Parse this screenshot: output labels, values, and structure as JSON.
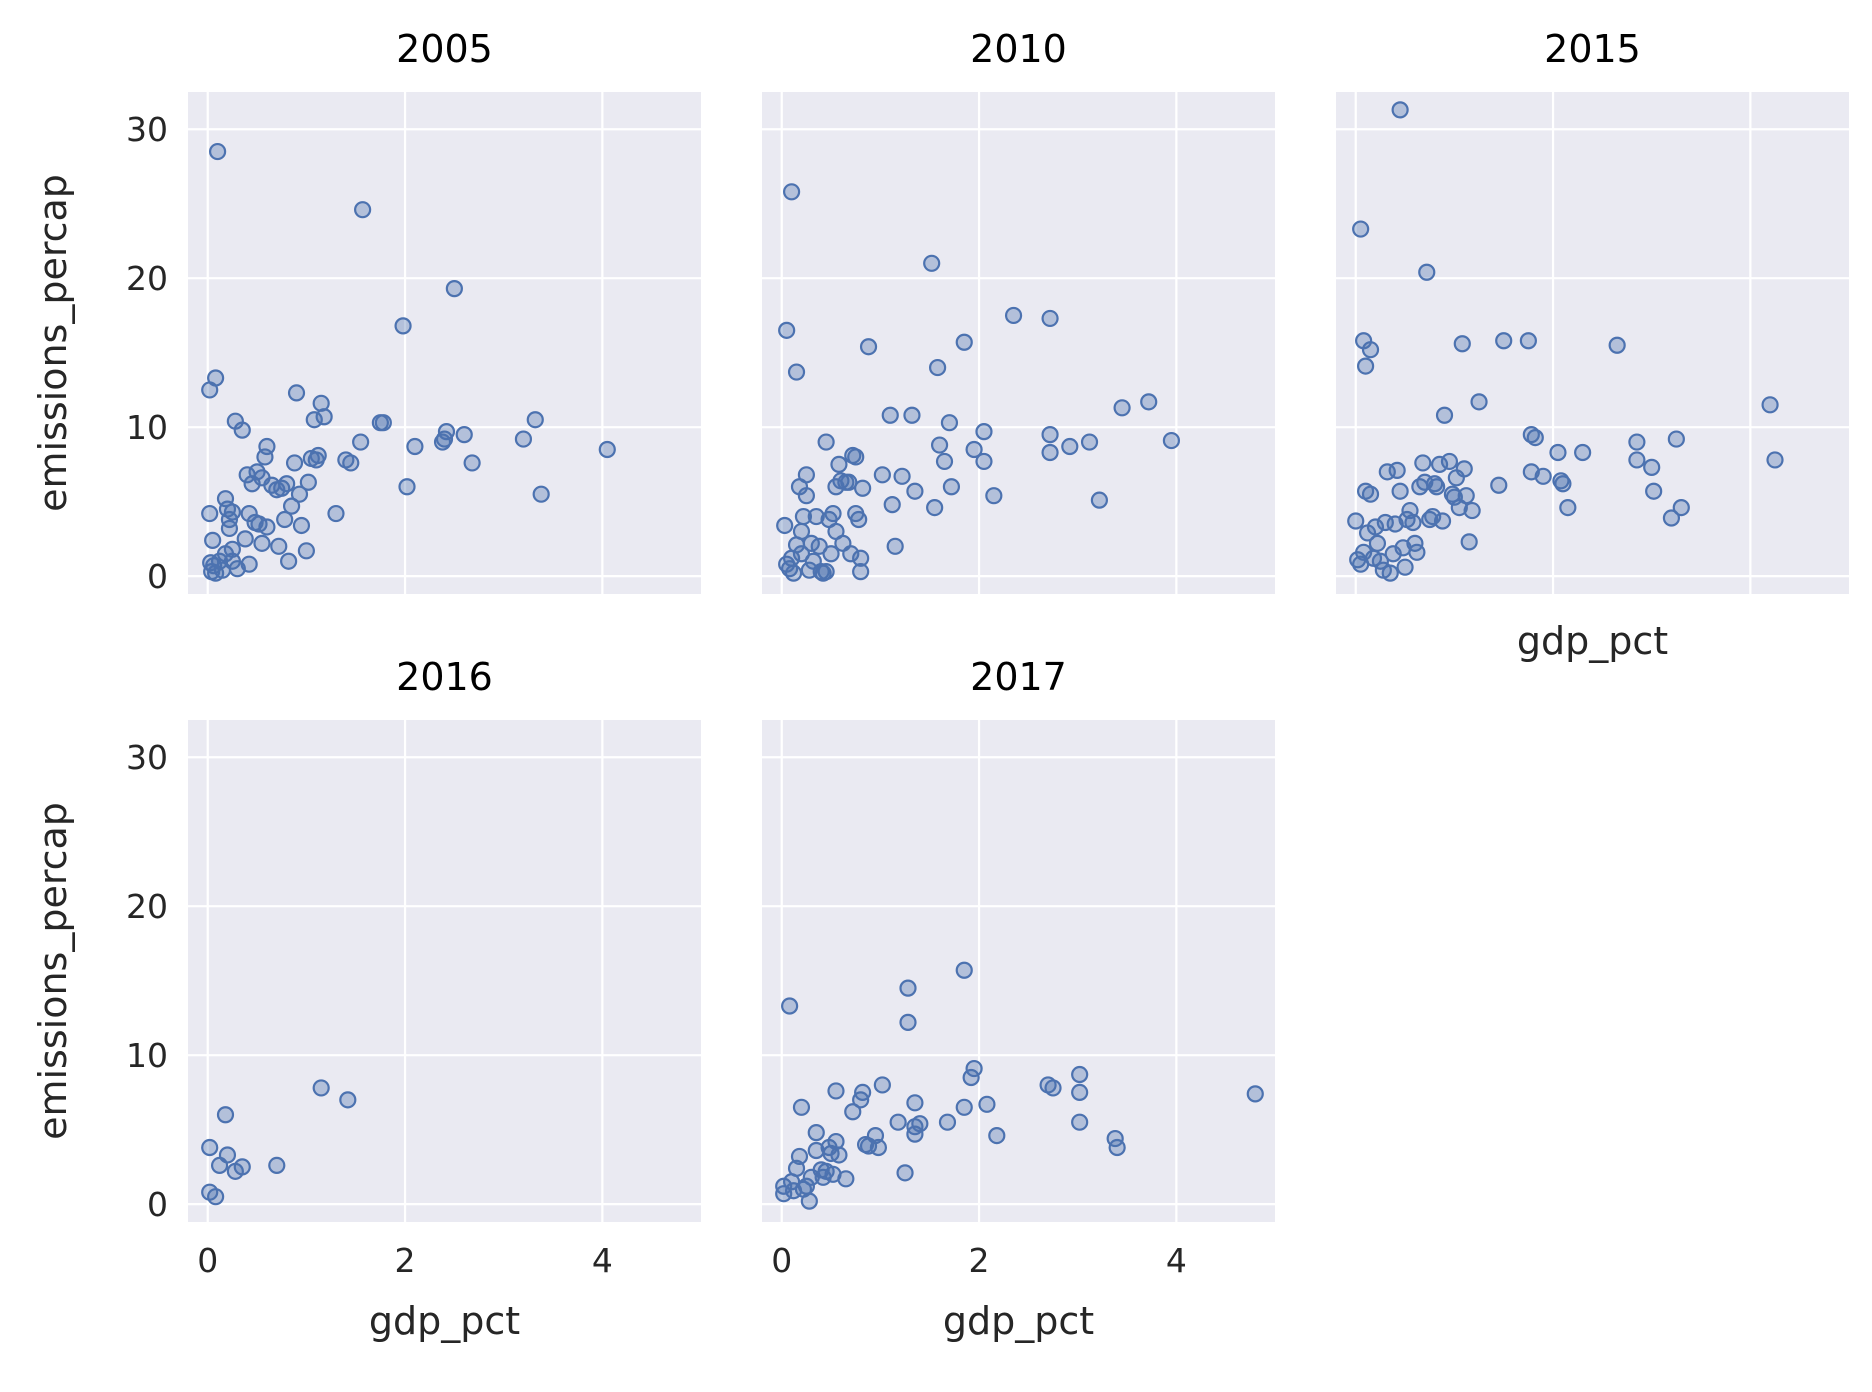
{
  "chart_data": {
    "type": "scatter",
    "layout": "facet-grid",
    "xlabel": "gdp_pct",
    "ylabel": "emissions_percap",
    "xlim": [
      -0.2,
      5.0
    ],
    "ylim": [
      -1.2,
      32.5
    ],
    "xticks": [
      0,
      2,
      4
    ],
    "yticks": [
      0,
      10,
      20,
      30
    ],
    "grid": true,
    "colors": {
      "background": "#eaeaf2",
      "grid": "#ffffff",
      "point": "#4c72b0"
    },
    "facets": [
      {
        "title": "2005",
        "points": [
          [
            0.02,
            12.5
          ],
          [
            0.08,
            13.3
          ],
          [
            0.1,
            28.5
          ],
          [
            0.02,
            4.2
          ],
          [
            0.05,
            2.4
          ],
          [
            0.03,
            0.9
          ],
          [
            0.06,
            0.7
          ],
          [
            0.04,
            0.3
          ],
          [
            0.08,
            0.2
          ],
          [
            0.12,
            1.0
          ],
          [
            0.15,
            0.4
          ],
          [
            0.18,
            1.5
          ],
          [
            0.18,
            5.2
          ],
          [
            0.2,
            4.5
          ],
          [
            0.22,
            3.8
          ],
          [
            0.22,
            3.2
          ],
          [
            0.25,
            4.3
          ],
          [
            0.25,
            1.8
          ],
          [
            0.28,
            10.4
          ],
          [
            0.3,
            0.5
          ],
          [
            0.35,
            9.8
          ],
          [
            0.38,
            2.5
          ],
          [
            0.4,
            6.8
          ],
          [
            0.42,
            4.2
          ],
          [
            0.45,
            6.2
          ],
          [
            0.48,
            3.6
          ],
          [
            0.5,
            7.0
          ],
          [
            0.52,
            3.5
          ],
          [
            0.55,
            6.6
          ],
          [
            0.55,
            2.2
          ],
          [
            0.58,
            8.0
          ],
          [
            0.6,
            8.7
          ],
          [
            0.6,
            3.3
          ],
          [
            0.65,
            6.1
          ],
          [
            0.7,
            5.8
          ],
          [
            0.72,
            2.0
          ],
          [
            0.75,
            5.9
          ],
          [
            0.78,
            3.8
          ],
          [
            0.8,
            6.2
          ],
          [
            0.82,
            1.0
          ],
          [
            0.85,
            4.7
          ],
          [
            0.88,
            7.6
          ],
          [
            0.9,
            12.3
          ],
          [
            0.93,
            5.5
          ],
          [
            0.95,
            3.4
          ],
          [
            1.0,
            1.7
          ],
          [
            1.02,
            6.3
          ],
          [
            1.05,
            7.9
          ],
          [
            1.08,
            10.5
          ],
          [
            1.1,
            7.8
          ],
          [
            1.12,
            8.1
          ],
          [
            1.15,
            11.6
          ],
          [
            1.18,
            10.7
          ],
          [
            1.3,
            4.2
          ],
          [
            1.4,
            7.8
          ],
          [
            1.45,
            7.6
          ],
          [
            1.55,
            9.0
          ],
          [
            1.57,
            24.6
          ],
          [
            1.75,
            10.3
          ],
          [
            1.78,
            10.3
          ],
          [
            1.98,
            16.8
          ],
          [
            2.02,
            6.0
          ],
          [
            2.1,
            8.7
          ],
          [
            2.38,
            9.0
          ],
          [
            2.4,
            9.2
          ],
          [
            2.42,
            9.7
          ],
          [
            2.5,
            19.3
          ],
          [
            2.6,
            9.5
          ],
          [
            2.68,
            7.6
          ],
          [
            3.2,
            9.2
          ],
          [
            3.32,
            10.5
          ],
          [
            3.38,
            5.5
          ],
          [
            4.05,
            8.5
          ],
          [
            0.42,
            0.8
          ],
          [
            0.25,
            1.0
          ]
        ],
        "xlabel": "",
        "xticks_visible": false
      },
      {
        "title": "2010",
        "points": [
          [
            0.05,
            16.5
          ],
          [
            0.1,
            25.8
          ],
          [
            0.15,
            13.7
          ],
          [
            0.03,
            3.4
          ],
          [
            0.05,
            0.8
          ],
          [
            0.08,
            0.5
          ],
          [
            0.1,
            1.2
          ],
          [
            0.12,
            0.2
          ],
          [
            0.15,
            2.1
          ],
          [
            0.18,
            6.0
          ],
          [
            0.2,
            1.5
          ],
          [
            0.2,
            3.0
          ],
          [
            0.22,
            4.0
          ],
          [
            0.25,
            5.4
          ],
          [
            0.25,
            6.8
          ],
          [
            0.28,
            0.4
          ],
          [
            0.3,
            2.2
          ],
          [
            0.32,
            1.0
          ],
          [
            0.35,
            4.0
          ],
          [
            0.38,
            2.0
          ],
          [
            0.4,
            0.3
          ],
          [
            0.42,
            0.2
          ],
          [
            0.45,
            9.0
          ],
          [
            0.48,
            3.8
          ],
          [
            0.5,
            1.5
          ],
          [
            0.52,
            4.2
          ],
          [
            0.55,
            6.0
          ],
          [
            0.55,
            3.0
          ],
          [
            0.58,
            7.5
          ],
          [
            0.6,
            6.4
          ],
          [
            0.62,
            2.2
          ],
          [
            0.65,
            6.3
          ],
          [
            0.68,
            6.3
          ],
          [
            0.7,
            1.5
          ],
          [
            0.72,
            8.1
          ],
          [
            0.75,
            8.0
          ],
          [
            0.75,
            4.2
          ],
          [
            0.78,
            3.8
          ],
          [
            0.8,
            1.2
          ],
          [
            0.82,
            5.9
          ],
          [
            0.88,
            15.4
          ],
          [
            1.02,
            6.8
          ],
          [
            1.1,
            10.8
          ],
          [
            1.12,
            4.8
          ],
          [
            1.15,
            2.0
          ],
          [
            1.22,
            6.7
          ],
          [
            1.32,
            10.8
          ],
          [
            1.35,
            5.7
          ],
          [
            1.52,
            21.0
          ],
          [
            1.55,
            4.6
          ],
          [
            1.58,
            14.0
          ],
          [
            1.6,
            8.8
          ],
          [
            1.65,
            7.7
          ],
          [
            1.7,
            10.3
          ],
          [
            1.72,
            6.0
          ],
          [
            1.85,
            15.7
          ],
          [
            1.95,
            8.5
          ],
          [
            2.05,
            9.7
          ],
          [
            2.05,
            7.7
          ],
          [
            2.15,
            5.4
          ],
          [
            2.35,
            17.5
          ],
          [
            2.72,
            17.3
          ],
          [
            2.72,
            9.5
          ],
          [
            2.72,
            8.3
          ],
          [
            2.92,
            8.7
          ],
          [
            3.12,
            9.0
          ],
          [
            3.22,
            5.1
          ],
          [
            3.45,
            11.3
          ],
          [
            3.72,
            11.7
          ],
          [
            3.95,
            9.1
          ],
          [
            0.8,
            0.3
          ],
          [
            0.45,
            0.3
          ]
        ],
        "xlabel": "",
        "xticks_visible": false
      },
      {
        "title": "2015",
        "points": [
          [
            0.05,
            23.3
          ],
          [
            0.08,
            15.8
          ],
          [
            0.1,
            14.1
          ],
          [
            0.15,
            15.2
          ],
          [
            0.45,
            31.3
          ],
          [
            0.0,
            3.7
          ],
          [
            0.02,
            1.1
          ],
          [
            0.05,
            0.8
          ],
          [
            0.08,
            1.6
          ],
          [
            0.1,
            5.7
          ],
          [
            0.12,
            2.9
          ],
          [
            0.15,
            5.5
          ],
          [
            0.18,
            1.2
          ],
          [
            0.2,
            3.3
          ],
          [
            0.22,
            2.2
          ],
          [
            0.25,
            1.0
          ],
          [
            0.28,
            0.4
          ],
          [
            0.3,
            3.6
          ],
          [
            0.32,
            7.0
          ],
          [
            0.35,
            0.2
          ],
          [
            0.38,
            1.5
          ],
          [
            0.4,
            3.5
          ],
          [
            0.42,
            7.1
          ],
          [
            0.45,
            5.7
          ],
          [
            0.48,
            1.9
          ],
          [
            0.5,
            0.6
          ],
          [
            0.52,
            3.8
          ],
          [
            0.55,
            4.4
          ],
          [
            0.58,
            3.6
          ],
          [
            0.6,
            2.2
          ],
          [
            0.62,
            1.6
          ],
          [
            0.65,
            6.0
          ],
          [
            0.68,
            7.6
          ],
          [
            0.7,
            6.3
          ],
          [
            0.72,
            20.4
          ],
          [
            0.75,
            3.8
          ],
          [
            0.78,
            4.0
          ],
          [
            0.8,
            6.2
          ],
          [
            0.82,
            6.0
          ],
          [
            0.85,
            7.5
          ],
          [
            0.88,
            3.7
          ],
          [
            0.9,
            10.8
          ],
          [
            0.95,
            7.7
          ],
          [
            0.98,
            5.5
          ],
          [
            1.0,
            5.3
          ],
          [
            1.02,
            6.6
          ],
          [
            1.05,
            4.6
          ],
          [
            1.08,
            15.6
          ],
          [
            1.1,
            7.2
          ],
          [
            1.12,
            5.4
          ],
          [
            1.15,
            2.3
          ],
          [
            1.18,
            4.4
          ],
          [
            1.25,
            11.7
          ],
          [
            1.45,
            6.1
          ],
          [
            1.5,
            15.8
          ],
          [
            1.75,
            15.8
          ],
          [
            1.78,
            9.5
          ],
          [
            1.78,
            7.0
          ],
          [
            1.82,
            9.3
          ],
          [
            1.9,
            6.7
          ],
          [
            2.05,
            8.3
          ],
          [
            2.08,
            6.4
          ],
          [
            2.1,
            6.2
          ],
          [
            2.15,
            4.6
          ],
          [
            2.3,
            8.3
          ],
          [
            2.65,
            15.5
          ],
          [
            2.85,
            9.0
          ],
          [
            2.85,
            7.8
          ],
          [
            3.0,
            7.3
          ],
          [
            3.02,
            5.7
          ],
          [
            3.2,
            3.9
          ],
          [
            3.25,
            9.2
          ],
          [
            3.3,
            4.6
          ],
          [
            4.2,
            11.5
          ],
          [
            4.25,
            7.8
          ]
        ],
        "xlabel": "gdp_pct",
        "xticks_visible": false
      },
      {
        "title": "2016",
        "points": [
          [
            0.02,
            3.8
          ],
          [
            0.02,
            0.8
          ],
          [
            0.08,
            0.5
          ],
          [
            0.12,
            2.6
          ],
          [
            0.18,
            6.0
          ],
          [
            0.2,
            3.3
          ],
          [
            0.28,
            2.2
          ],
          [
            0.35,
            2.5
          ],
          [
            0.7,
            2.6
          ],
          [
            1.15,
            7.8
          ],
          [
            1.42,
            7.0
          ]
        ],
        "xlabel": "gdp_pct",
        "xticks_visible": true
      },
      {
        "title": "2017",
        "points": [
          [
            0.02,
            1.2
          ],
          [
            0.02,
            0.7
          ],
          [
            0.08,
            13.3
          ],
          [
            0.1,
            1.5
          ],
          [
            0.12,
            0.9
          ],
          [
            0.15,
            2.4
          ],
          [
            0.18,
            3.2
          ],
          [
            0.2,
            6.5
          ],
          [
            0.22,
            1.0
          ],
          [
            0.25,
            1.2
          ],
          [
            0.28,
            0.2
          ],
          [
            0.3,
            1.8
          ],
          [
            0.35,
            4.8
          ],
          [
            0.35,
            3.6
          ],
          [
            0.4,
            2.3
          ],
          [
            0.42,
            1.8
          ],
          [
            0.45,
            2.2
          ],
          [
            0.48,
            3.8
          ],
          [
            0.5,
            3.4
          ],
          [
            0.52,
            2.0
          ],
          [
            0.55,
            4.2
          ],
          [
            0.55,
            7.6
          ],
          [
            0.58,
            3.3
          ],
          [
            0.65,
            1.7
          ],
          [
            0.72,
            6.2
          ],
          [
            0.8,
            7.0
          ],
          [
            0.82,
            7.5
          ],
          [
            0.85,
            4.0
          ],
          [
            0.88,
            3.9
          ],
          [
            0.95,
            4.6
          ],
          [
            0.98,
            3.8
          ],
          [
            1.02,
            8.0
          ],
          [
            1.18,
            5.5
          ],
          [
            1.25,
            2.1
          ],
          [
            1.28,
            12.2
          ],
          [
            1.28,
            14.5
          ],
          [
            1.35,
            6.8
          ],
          [
            1.35,
            5.2
          ],
          [
            1.35,
            4.7
          ],
          [
            1.4,
            5.4
          ],
          [
            1.68,
            5.5
          ],
          [
            1.85,
            15.7
          ],
          [
            1.85,
            6.5
          ],
          [
            1.92,
            8.5
          ],
          [
            1.95,
            9.1
          ],
          [
            2.08,
            6.7
          ],
          [
            2.18,
            4.6
          ],
          [
            2.7,
            8.0
          ],
          [
            2.75,
            7.8
          ],
          [
            3.02,
            8.7
          ],
          [
            3.02,
            7.5
          ],
          [
            3.02,
            5.5
          ],
          [
            3.38,
            4.4
          ],
          [
            3.4,
            3.8
          ],
          [
            4.8,
            7.4
          ]
        ],
        "xlabel": "gdp_pct",
        "xticks_visible": true
      }
    ]
  }
}
